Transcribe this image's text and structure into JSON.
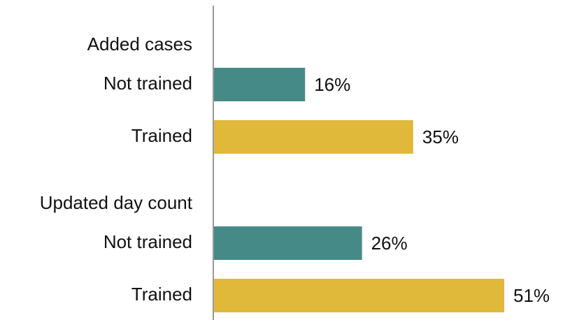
{
  "chart_data": {
    "type": "bar",
    "orientation": "horizontal",
    "categories": [
      "Added cases",
      "Updated day count"
    ],
    "series": [
      {
        "name": "Not trained",
        "color": "#468a88",
        "values": [
          16,
          26
        ],
        "value_labels": [
          "16%",
          "26%"
        ]
      },
      {
        "name": "Trained",
        "color": "#e0b83a",
        "values": [
          35,
          51
        ],
        "value_labels": [
          "35%",
          "51%"
        ]
      }
    ]
  }
}
